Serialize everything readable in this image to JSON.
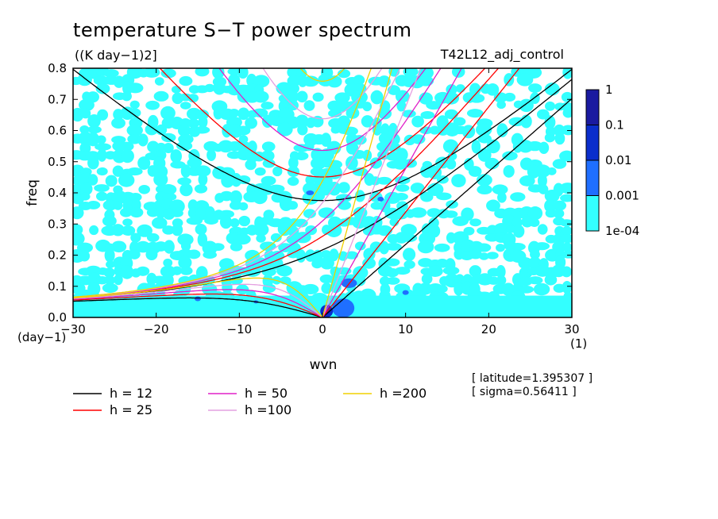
{
  "chart_data": {
    "type": "heatmap",
    "title": "temperature S−T power spectrum",
    "subtitle": "((K day−1)2]",
    "run_label": "T42L12_adj_control",
    "xlabel": "wvn",
    "ylabel": "freq",
    "x_unit": "(1)",
    "y_unit": "(day−1)",
    "xlim": [
      -30,
      30
    ],
    "ylim": [
      0,
      0.8
    ],
    "x_ticks": [
      -30,
      -20,
      -10,
      0,
      10,
      20,
      30
    ],
    "y_ticks": [
      0.0,
      0.1,
      0.2,
      0.3,
      0.4,
      0.5,
      0.6,
      0.7,
      0.8
    ],
    "x_tick_labels": [
      "−30",
      "−20",
      "−10",
      "0",
      "10",
      "20",
      "30"
    ],
    "y_tick_labels": [
      "0.0",
      "0.1",
      "0.2",
      "0.3",
      "0.4",
      "0.5",
      "0.6",
      "0.7",
      "0.8"
    ],
    "colorbar": {
      "levels": [
        "1e-04",
        "0.001",
        "0.01",
        "0.1",
        "1"
      ],
      "colors": [
        "#33ffff",
        "#1f6fff",
        "#0a2ecc",
        "#1a1aa0",
        "#4a1aa8"
      ]
    },
    "dispersion_curves": [
      {
        "name": "h = 12",
        "h": 12,
        "color": "#000000"
      },
      {
        "name": "h = 25",
        "h": 25,
        "color": "#ff0000"
      },
      {
        "name": "h = 50",
        "h": 50,
        "color": "#e020c8"
      },
      {
        "name": "h =100",
        "h": 100,
        "color": "#e4a0e0"
      },
      {
        "name": "h =200",
        "h": 200,
        "color": "#f0d000"
      }
    ],
    "info": {
      "latitude": "[ latitude=1.395307 ]",
      "sigma": "[ sigma=0.56411 ]"
    }
  }
}
